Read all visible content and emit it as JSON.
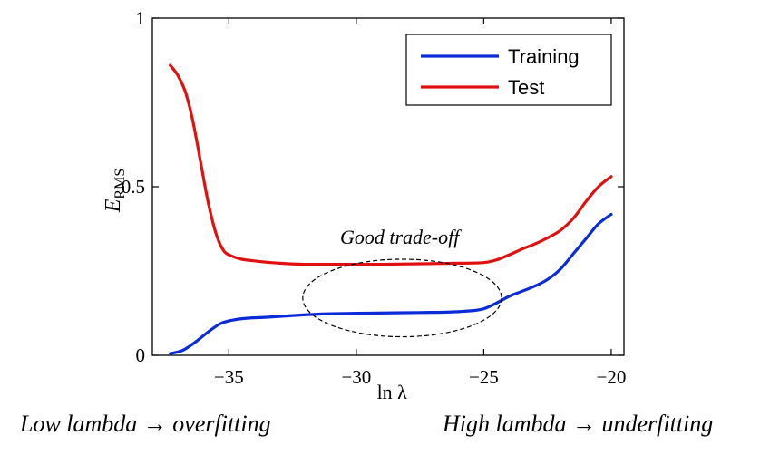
{
  "chart_data": {
    "type": "line",
    "title": "",
    "xlabel": "ln λ",
    "ylabel": {
      "main": "E",
      "sub": "RMS"
    },
    "xlim": [
      -38,
      -19.5
    ],
    "ylim": [
      0,
      1
    ],
    "xticks": [
      -35,
      -30,
      -25,
      -20
    ],
    "xtick_labels": [
      "−35",
      "−30",
      "−25",
      "−20"
    ],
    "yticks": [
      0,
      0.5,
      1
    ],
    "ytick_labels": [
      "0",
      "0.5",
      "1"
    ],
    "grid": false,
    "legend_position": "top-right",
    "series": [
      {
        "name": "Training",
        "color": "#0a2cd6",
        "x": [
          -37.3,
          -36.8,
          -36.3,
          -35.8,
          -35.3,
          -34.8,
          -34.3,
          -33.5,
          -32.5,
          -31.5,
          -30.5,
          -29.5,
          -28.5,
          -27.5,
          -26.5,
          -25.5,
          -25,
          -24.5,
          -24,
          -23.5,
          -23,
          -22.5,
          -22,
          -21.5,
          -21,
          -20.5,
          -20
        ],
        "y": [
          0.005,
          0.015,
          0.04,
          0.07,
          0.095,
          0.105,
          0.11,
          0.113,
          0.118,
          0.122,
          0.124,
          0.125,
          0.126,
          0.127,
          0.128,
          0.132,
          0.138,
          0.155,
          0.175,
          0.19,
          0.205,
          0.225,
          0.255,
          0.3,
          0.345,
          0.39,
          0.418
        ]
      },
      {
        "name": "Test",
        "color": "#e01010",
        "x": [
          -37.3,
          -37,
          -36.7,
          -36.4,
          -36.1,
          -35.8,
          -35.5,
          -35.2,
          -34.9,
          -34.5,
          -34,
          -33,
          -32,
          -31,
          -30,
          -29,
          -28,
          -27,
          -26,
          -25,
          -24.5,
          -24,
          -23.5,
          -23,
          -22.5,
          -22,
          -21.5,
          -21,
          -20.5,
          -20
        ],
        "y": [
          0.86,
          0.83,
          0.78,
          0.69,
          0.57,
          0.45,
          0.36,
          0.31,
          0.295,
          0.285,
          0.28,
          0.273,
          0.27,
          0.27,
          0.27,
          0.27,
          0.271,
          0.272,
          0.273,
          0.275,
          0.283,
          0.298,
          0.315,
          0.33,
          0.348,
          0.37,
          0.405,
          0.455,
          0.5,
          0.53
        ]
      }
    ],
    "annotations": [
      {
        "text": "Good trade-off",
        "x": -28.3,
        "y": 0.33
      }
    ],
    "ellipse": {
      "cx": -28.2,
      "cy": 0.17,
      "rx": 3.9,
      "ry": 0.115
    }
  },
  "footer": {
    "left_note": "Low lambda → overfitting",
    "right_note": "High lambda → underfitting"
  }
}
